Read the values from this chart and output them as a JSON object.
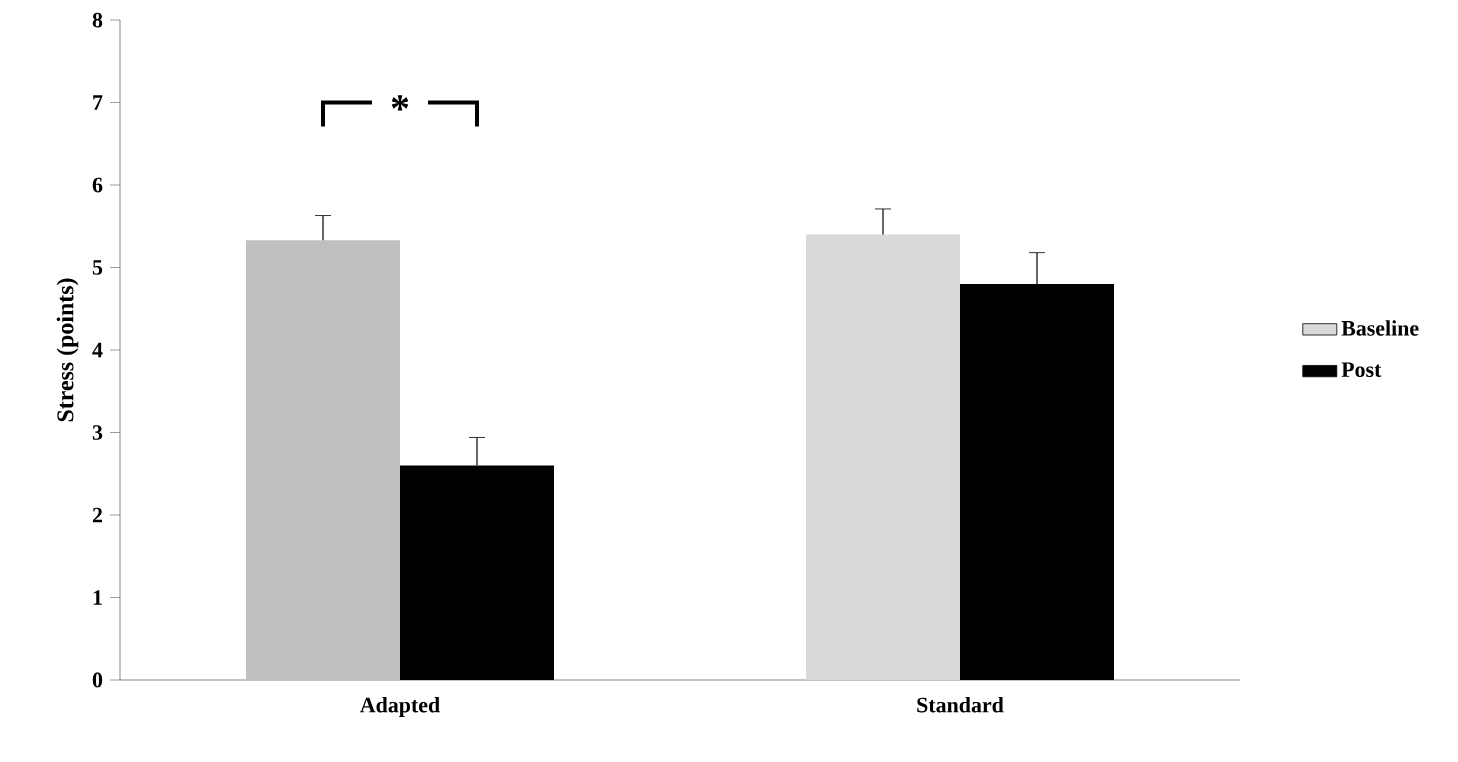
{
  "chart_data": {
    "type": "bar",
    "ylabel": "Stress (points)",
    "categories": [
      "Adapted",
      "Standard"
    ],
    "series": [
      {
        "name": "Baseline",
        "color": "#d9d9d9",
        "colors": [
          "#bfbfbf",
          "#d9d9d9"
        ],
        "values": [
          5.33,
          5.4
        ],
        "errors": [
          [
            5.33,
            5.63
          ],
          [
            5.4,
            5.71
          ]
        ]
      },
      {
        "name": "Post",
        "color": "#000000",
        "values": [
          2.6,
          4.8
        ],
        "errors": [
          [
            2.6,
            2.94
          ],
          [
            4.8,
            5.18
          ]
        ]
      }
    ],
    "ylim": [
      0,
      8
    ],
    "yticks": [
      0,
      1,
      2,
      3,
      4,
      5,
      6,
      7,
      8
    ],
    "annotations": [
      "*"
    ],
    "legend": "right",
    "grid": false
  }
}
